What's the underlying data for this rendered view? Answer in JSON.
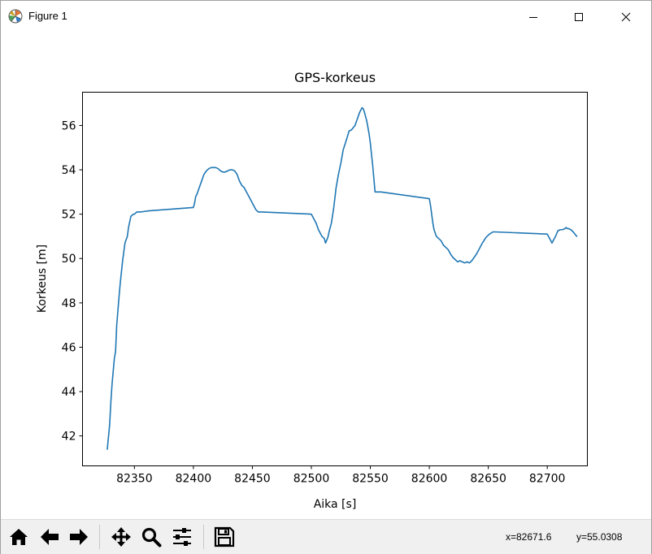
{
  "window": {
    "title": "Figure 1",
    "icons": {
      "app": "matplotlib-icon",
      "minimize": "minimize-icon",
      "maximize": "maximize-icon",
      "close": "close-icon"
    }
  },
  "toolbar": {
    "buttons": [
      {
        "name": "home-button",
        "icon": "home-icon"
      },
      {
        "name": "back-button",
        "icon": "arrow-left-icon"
      },
      {
        "name": "forward-button",
        "icon": "arrow-right-icon"
      },
      {
        "name": "pan-button",
        "icon": "move-icon"
      },
      {
        "name": "zoom-button",
        "icon": "magnifier-icon"
      },
      {
        "name": "configure-subplots-button",
        "icon": "sliders-icon"
      },
      {
        "name": "save-button",
        "icon": "floppy-disk-icon"
      }
    ],
    "coord_x": "x=82671.6",
    "coord_y": "y=55.0308"
  },
  "chart_data": {
    "type": "line",
    "title": "GPS-korkeus",
    "xlabel": "Aika [s]",
    "ylabel": "Korkeus [m]",
    "xlim": [
      82306,
      82734
    ],
    "ylim": [
      40.65,
      57.5
    ],
    "xticks": [
      82350,
      82400,
      82450,
      82500,
      82550,
      82600,
      82650,
      82700
    ],
    "yticks": [
      42,
      44,
      46,
      48,
      50,
      52,
      54,
      56
    ],
    "grid": false,
    "line_color": "#1f77b4",
    "series": [
      {
        "x": [
          82327,
          82329,
          82330,
          82331,
          82332,
          82333,
          82334,
          82335,
          82337,
          82338,
          82339,
          82340,
          82342,
          82344,
          82345,
          82347,
          82349,
          82350,
          82352,
          82355,
          82358,
          82362,
          82400,
          82401,
          82402,
          82403,
          82405,
          82407,
          82409,
          82411,
          82413,
          82415,
          82417,
          82419,
          82421,
          82423,
          82425,
          82427,
          82429,
          82431,
          82433,
          82435,
          82437,
          82439,
          82441,
          82443,
          82445,
          82447,
          82449,
          82451,
          82453,
          82455,
          82458,
          82500,
          82502,
          82504,
          82506,
          82508,
          82509,
          82510,
          82511,
          82512,
          82514,
          82515,
          82517,
          82519,
          82521,
          82523,
          82525,
          82527,
          82530,
          82532,
          82534,
          82537,
          82539,
          82541,
          82543,
          82544,
          82545,
          82546,
          82547,
          82548,
          82549,
          82550,
          82552,
          82554,
          82556,
          82558,
          82559,
          82600,
          82601,
          82602,
          82603,
          82604,
          82606,
          82608,
          82610,
          82612,
          82614,
          82616,
          82618,
          82620,
          82622,
          82624,
          82626,
          82628,
          82630,
          82632,
          82634,
          82636,
          82638,
          82640,
          82642,
          82645,
          82648,
          82651,
          82654,
          82656,
          82700,
          82702,
          82703,
          82704,
          82705,
          82707,
          82709,
          82711,
          82713,
          82715,
          82716,
          82717,
          82718,
          82720,
          82722,
          82725
        ],
        "y": [
          41.4,
          42.5,
          43.5,
          44.3,
          44.9,
          45.5,
          45.8,
          47.0,
          48.3,
          48.9,
          49.4,
          49.9,
          50.7,
          51.0,
          51.4,
          51.9,
          52.0,
          52.0,
          52.1,
          52.1,
          52.12,
          52.15,
          52.3,
          52.5,
          52.8,
          52.9,
          53.2,
          53.5,
          53.8,
          53.95,
          54.05,
          54.1,
          54.1,
          54.1,
          54.05,
          53.95,
          53.9,
          53.9,
          53.95,
          54.0,
          54.0,
          53.95,
          53.8,
          53.5,
          53.3,
          53.2,
          53.0,
          52.8,
          52.6,
          52.4,
          52.2,
          52.1,
          52.1,
          52.0,
          51.8,
          51.6,
          51.3,
          51.1,
          51.0,
          50.95,
          50.9,
          50.7,
          50.95,
          51.2,
          51.6,
          52.3,
          53.2,
          53.8,
          54.3,
          54.9,
          55.4,
          55.75,
          55.8,
          56.0,
          56.3,
          56.6,
          56.8,
          56.75,
          56.6,
          56.4,
          56.2,
          55.9,
          55.6,
          55.2,
          54.2,
          53.0,
          53.0,
          53.0,
          53.0,
          52.7,
          52.4,
          52.0,
          51.6,
          51.3,
          51.0,
          50.9,
          50.8,
          50.6,
          50.5,
          50.4,
          50.2,
          50.05,
          49.95,
          49.85,
          49.9,
          49.85,
          49.8,
          49.85,
          49.8,
          49.9,
          50.05,
          50.2,
          50.4,
          50.7,
          50.95,
          51.1,
          51.2,
          51.2,
          51.1,
          50.9,
          50.8,
          50.7,
          50.8,
          51.0,
          51.25,
          51.3,
          51.3,
          51.35,
          51.4,
          51.35,
          51.35,
          51.3,
          51.2,
          51.0
        ]
      }
    ]
  }
}
